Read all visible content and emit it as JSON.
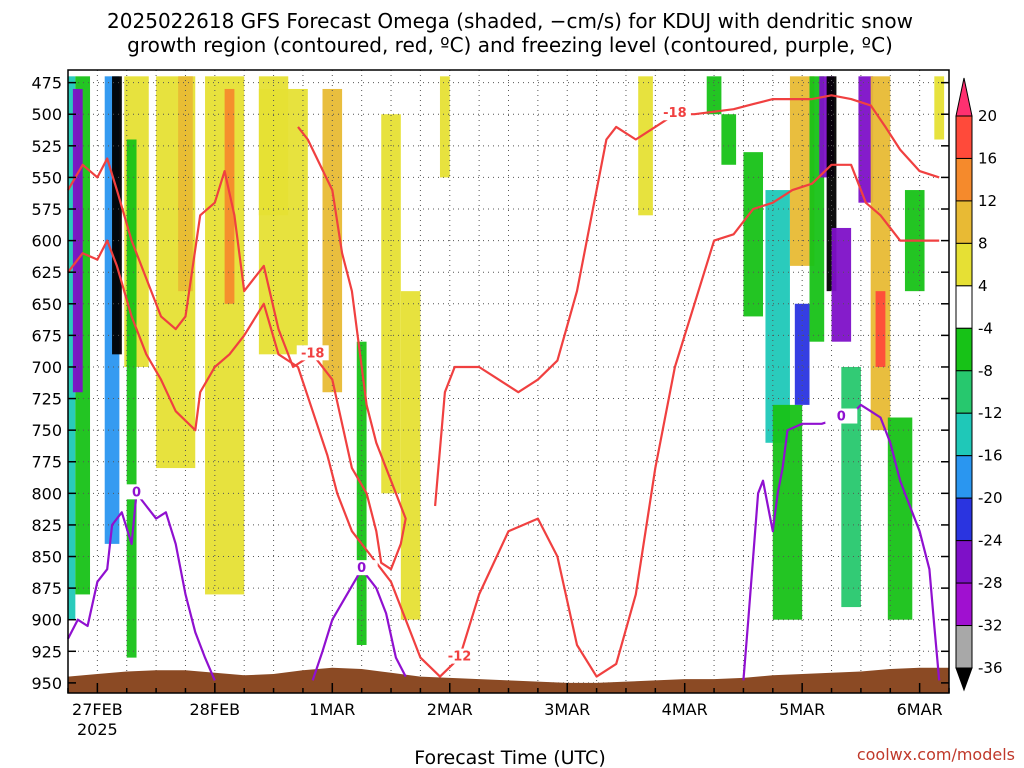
{
  "page": {
    "title_line1": "2025022618 GFS Forecast Omega (shaded, −cm/s) for KDUJ with dendritic snow",
    "title_line2": "growth region (contoured, red, ºC) and freezing level (contoured, purple, ºC)",
    "xlabel": "Forecast Time (UTC)",
    "credit": "coolwx.com/models"
  },
  "colors": {
    "red_contour": "#f04040",
    "purple_contour": "#9010d0",
    "terrain": "#8b4a24"
  },
  "chart_data": {
    "type": "heatmap",
    "title": "2025022618 GFS Forecast Omega (shaded, −cm/s) for KDUJ with dendritic snow growth region (contoured, red, ºC) and freezing level (contoured, purple, ºC)",
    "xlabel": "Forecast Time (UTC)",
    "ylabel": "",
    "y_axis": {
      "ticks": [
        475,
        500,
        525,
        550,
        575,
        600,
        625,
        650,
        675,
        700,
        725,
        750,
        775,
        800,
        825,
        850,
        875,
        900,
        925,
        950
      ],
      "range": [
        465,
        958
      ],
      "inverted": true
    },
    "x_axis": {
      "ticks": [
        {
          "label": "27FEB",
          "sub": "2025",
          "hour": 6
        },
        {
          "label": "28FEB",
          "sub": "",
          "hour": 30
        },
        {
          "label": "1MAR",
          "sub": "",
          "hour": 54
        },
        {
          "label": "2MAR",
          "sub": "",
          "hour": 78
        },
        {
          "label": "3MAR",
          "sub": "",
          "hour": 102
        },
        {
          "label": "4MAR",
          "sub": "",
          "hour": 126
        },
        {
          "label": "5MAR",
          "sub": "",
          "hour": 150
        },
        {
          "label": "6MAR",
          "sub": "",
          "hour": 174
        }
      ],
      "range_hours": [
        0,
        180
      ]
    },
    "grid": true,
    "colorbar": {
      "labels": [
        "20",
        "16",
        "12",
        "8",
        "4",
        "-4",
        "-8",
        "-12",
        "-16",
        "-20",
        "-24",
        "-28",
        "-32",
        "-36"
      ],
      "colors": [
        "#ff3070",
        "#ff4a3a",
        "#f58a2c",
        "#e8ba34",
        "#e6e034",
        "#ffffff",
        "#17c217",
        "#27c86e",
        "#1fc8b8",
        "#2a96f0",
        "#2a34e0",
        "#7e10c8",
        "#a010d0",
        "#a8a8a8",
        "#000000"
      ]
    },
    "omega_regions": [
      {
        "hour": 0.5,
        "width": 2,
        "p_top": 470,
        "p_bot": 900,
        "color": "#1fc8b8"
      },
      {
        "hour": 3,
        "width": 3,
        "p_top": 470,
        "p_bot": 880,
        "color": "#17c217"
      },
      {
        "hour": 2,
        "width": 2,
        "p_top": 480,
        "p_bot": 720,
        "color": "#7e10c8"
      },
      {
        "hour": 9,
        "width": 3,
        "p_top": 470,
        "p_bot": 840,
        "color": "#2a96f0"
      },
      {
        "hour": 10,
        "width": 2,
        "p_top": 470,
        "p_bot": 690,
        "color": "#000000"
      },
      {
        "hour": 14,
        "width": 5,
        "p_top": 470,
        "p_bot": 700,
        "color": "#e6e034"
      },
      {
        "hour": 13,
        "width": 2,
        "p_top": 520,
        "p_bot": 930,
        "color": "#17c217"
      },
      {
        "hour": 22,
        "width": 8,
        "p_top": 470,
        "p_bot": 780,
        "color": "#e6e034"
      },
      {
        "hour": 24,
        "width": 3,
        "p_top": 470,
        "p_bot": 640,
        "color": "#e8ba34"
      },
      {
        "hour": 32,
        "width": 8,
        "p_top": 470,
        "p_bot": 880,
        "color": "#e6e034"
      },
      {
        "hour": 33,
        "width": 2,
        "p_top": 480,
        "p_bot": 650,
        "color": "#f58a2c"
      },
      {
        "hour": 42,
        "width": 6,
        "p_top": 470,
        "p_bot": 580,
        "color": "#e6e034"
      },
      {
        "hour": 44,
        "width": 10,
        "p_top": 480,
        "p_bot": 690,
        "color": "#e6e034"
      },
      {
        "hour": 54,
        "width": 4,
        "p_top": 480,
        "p_bot": 720,
        "color": "#e8ba34"
      },
      {
        "hour": 60,
        "width": 2,
        "p_top": 680,
        "p_bot": 920,
        "color": "#17c217"
      },
      {
        "hour": 66,
        "width": 4,
        "p_top": 500,
        "p_bot": 800,
        "color": "#e6e034"
      },
      {
        "hour": 70,
        "width": 4,
        "p_top": 640,
        "p_bot": 900,
        "color": "#e6e034"
      },
      {
        "hour": 77,
        "width": 2,
        "p_top": 470,
        "p_bot": 550,
        "color": "#e6e034"
      },
      {
        "hour": 118,
        "width": 3,
        "p_top": 470,
        "p_bot": 580,
        "color": "#e6e034"
      },
      {
        "hour": 132,
        "width": 3,
        "p_top": 470,
        "p_bot": 500,
        "color": "#17c217"
      },
      {
        "hour": 135,
        "width": 3,
        "p_top": 500,
        "p_bot": 540,
        "color": "#17c217"
      },
      {
        "hour": 140,
        "width": 4,
        "p_top": 530,
        "p_bot": 660,
        "color": "#17c217"
      },
      {
        "hour": 145,
        "width": 5,
        "p_top": 560,
        "p_bot": 760,
        "color": "#1fc8b8"
      },
      {
        "hour": 147,
        "width": 6,
        "p_top": 730,
        "p_bot": 900,
        "color": "#17c217"
      },
      {
        "hour": 150,
        "width": 5,
        "p_top": 470,
        "p_bot": 620,
        "color": "#e8ba34"
      },
      {
        "hour": 150,
        "width": 3,
        "p_top": 650,
        "p_bot": 730,
        "color": "#2a34e0"
      },
      {
        "hour": 153,
        "width": 3,
        "p_top": 470,
        "p_bot": 680,
        "color": "#17c217"
      },
      {
        "hour": 155,
        "width": 3,
        "p_top": 470,
        "p_bot": 550,
        "color": "#7e10c8"
      },
      {
        "hour": 156,
        "width": 2,
        "p_top": 470,
        "p_bot": 640,
        "color": "#000000"
      },
      {
        "hour": 158,
        "width": 4,
        "p_top": 590,
        "p_bot": 680,
        "color": "#7e10c8"
      },
      {
        "hour": 160,
        "width": 4,
        "p_top": 700,
        "p_bot": 890,
        "color": "#27c86e"
      },
      {
        "hour": 163,
        "width": 3,
        "p_top": 470,
        "p_bot": 570,
        "color": "#7e10c8"
      },
      {
        "hour": 166,
        "width": 4,
        "p_top": 470,
        "p_bot": 750,
        "color": "#e8ba34"
      },
      {
        "hour": 166,
        "width": 2,
        "p_top": 640,
        "p_bot": 700,
        "color": "#ff4a3a"
      },
      {
        "hour": 170,
        "width": 5,
        "p_top": 740,
        "p_bot": 900,
        "color": "#17c217"
      },
      {
        "hour": 173,
        "width": 4,
        "p_top": 560,
        "p_bot": 640,
        "color": "#17c217"
      },
      {
        "hour": 178,
        "width": 2,
        "p_top": 470,
        "p_bot": 520,
        "color": "#e6e034"
      }
    ],
    "dgz_contours": [
      {
        "label": "-18",
        "points": [
          [
            0,
            560
          ],
          [
            3,
            540
          ],
          [
            6,
            550
          ],
          [
            8,
            535
          ],
          [
            10,
            560
          ],
          [
            13,
            600
          ],
          [
            16,
            630
          ],
          [
            19,
            660
          ],
          [
            22,
            670
          ],
          [
            24,
            660
          ],
          [
            27,
            580
          ],
          [
            30,
            570
          ],
          [
            32,
            545
          ],
          [
            34,
            580
          ],
          [
            36,
            640
          ],
          [
            40,
            620
          ],
          [
            43,
            670
          ],
          [
            46,
            700
          ],
          [
            50,
            690
          ],
          [
            54,
            710
          ],
          [
            58,
            780
          ],
          [
            61,
            800
          ],
          [
            63,
            830
          ],
          [
            64,
            855
          ],
          [
            66,
            860
          ],
          [
            68,
            840
          ],
          [
            69,
            820
          ],
          [
            66,
            790
          ],
          [
            63,
            760
          ],
          [
            61,
            730
          ],
          [
            60,
            700
          ],
          [
            58,
            640
          ],
          [
            56,
            610
          ],
          [
            54,
            560
          ],
          [
            49,
            520
          ],
          [
            47,
            510
          ]
        ]
      },
      {
        "label": "-12",
        "points": [
          [
            0,
            625
          ],
          [
            3,
            610
          ],
          [
            6,
            615
          ],
          [
            8,
            600
          ],
          [
            10,
            620
          ],
          [
            13,
            660
          ],
          [
            16,
            690
          ],
          [
            19,
            710
          ],
          [
            22,
            735
          ],
          [
            26,
            750
          ],
          [
            27,
            720
          ],
          [
            30,
            700
          ],
          [
            33,
            690
          ],
          [
            36,
            675
          ],
          [
            40,
            650
          ],
          [
            43,
            690
          ],
          [
            47,
            700
          ],
          [
            50,
            735
          ],
          [
            53,
            770
          ],
          [
            55,
            800
          ],
          [
            58,
            830
          ],
          [
            62,
            850
          ],
          [
            66,
            870
          ],
          [
            69,
            900
          ],
          [
            72,
            930
          ],
          [
            76,
            945
          ],
          [
            80,
            930
          ],
          [
            84,
            880
          ],
          [
            90,
            830
          ],
          [
            96,
            820
          ],
          [
            100,
            850
          ],
          [
            104,
            920
          ],
          [
            108,
            945
          ],
          [
            112,
            935
          ],
          [
            116,
            880
          ],
          [
            120,
            780
          ],
          [
            124,
            700
          ],
          [
            128,
            650
          ],
          [
            130,
            625
          ],
          [
            132,
            600
          ],
          [
            136,
            595
          ],
          [
            140,
            575
          ],
          [
            144,
            570
          ],
          [
            148,
            560
          ],
          [
            152,
            555
          ],
          [
            156,
            540
          ],
          [
            160,
            540
          ],
          [
            163,
            570
          ],
          [
            166,
            580
          ],
          [
            170,
            600
          ],
          [
            174,
            600
          ],
          [
            178,
            600
          ]
        ]
      },
      {
        "label": "-18",
        "points": [
          [
            75,
            810
          ],
          [
            77,
            720
          ],
          [
            79,
            700
          ],
          [
            84,
            700
          ],
          [
            88,
            710
          ],
          [
            92,
            720
          ],
          [
            96,
            710
          ],
          [
            100,
            695
          ],
          [
            104,
            640
          ],
          [
            106,
            600
          ],
          [
            108,
            560
          ],
          [
            110,
            520
          ],
          [
            112,
            510
          ],
          [
            116,
            520
          ],
          [
            120,
            510
          ],
          [
            124,
            500
          ],
          [
            128,
            500
          ],
          [
            132,
            498
          ],
          [
            136,
            496
          ],
          [
            140,
            492
          ],
          [
            144,
            488
          ],
          [
            148,
            488
          ],
          [
            152,
            488
          ],
          [
            156,
            485
          ],
          [
            160,
            488
          ],
          [
            164,
            493
          ],
          [
            167,
            510
          ],
          [
            170,
            528
          ],
          [
            174,
            545
          ],
          [
            178,
            550
          ]
        ]
      }
    ],
    "freezing_level": [
      {
        "label": "0",
        "points": [
          [
            0,
            915
          ],
          [
            2,
            900
          ],
          [
            4,
            905
          ],
          [
            6,
            870
          ],
          [
            8,
            860
          ],
          [
            9,
            825
          ],
          [
            11,
            815
          ],
          [
            13,
            840
          ],
          [
            14,
            800
          ],
          [
            16,
            810
          ],
          [
            18,
            820
          ],
          [
            20,
            815
          ],
          [
            22,
            840
          ],
          [
            24,
            880
          ],
          [
            26,
            910
          ],
          [
            28,
            930
          ],
          [
            30,
            948
          ]
        ]
      },
      {
        "label": "0",
        "points": [
          [
            50,
            948
          ],
          [
            52,
            925
          ],
          [
            54,
            900
          ],
          [
            57,
            880
          ],
          [
            60,
            860
          ],
          [
            63,
            875
          ],
          [
            65,
            895
          ],
          [
            67,
            930
          ],
          [
            69,
            945
          ]
        ]
      },
      {
        "label": "0",
        "points": [
          [
            138,
            948
          ],
          [
            139,
            900
          ],
          [
            140,
            850
          ],
          [
            141,
            800
          ],
          [
            142,
            790
          ],
          [
            143,
            810
          ],
          [
            144,
            830
          ],
          [
            145,
            800
          ],
          [
            146,
            780
          ],
          [
            147,
            750
          ],
          [
            150,
            745
          ],
          [
            154,
            745
          ],
          [
            158,
            740
          ],
          [
            160,
            738
          ],
          [
            162,
            730
          ],
          [
            164,
            735
          ],
          [
            166,
            740
          ],
          [
            168,
            760
          ],
          [
            170,
            790
          ],
          [
            172,
            810
          ],
          [
            174,
            830
          ],
          [
            176,
            860
          ],
          [
            177,
            905
          ],
          [
            178,
            948
          ]
        ]
      }
    ],
    "terrain_top": [
      [
        0,
        945
      ],
      [
        6,
        943
      ],
      [
        12,
        941
      ],
      [
        18,
        940
      ],
      [
        24,
        940
      ],
      [
        30,
        942
      ],
      [
        36,
        944
      ],
      [
        42,
        943
      ],
      [
        48,
        940
      ],
      [
        54,
        938
      ],
      [
        60,
        939
      ],
      [
        66,
        942
      ],
      [
        72,
        945
      ],
      [
        78,
        946
      ],
      [
        84,
        947
      ],
      [
        90,
        948
      ],
      [
        96,
        949
      ],
      [
        102,
        950
      ],
      [
        108,
        950
      ],
      [
        114,
        949
      ],
      [
        120,
        948
      ],
      [
        126,
        947
      ],
      [
        132,
        947
      ],
      [
        138,
        946
      ],
      [
        144,
        944
      ],
      [
        150,
        943
      ],
      [
        156,
        942
      ],
      [
        162,
        941
      ],
      [
        168,
        939
      ],
      [
        174,
        938
      ],
      [
        180,
        938
      ]
    ]
  }
}
